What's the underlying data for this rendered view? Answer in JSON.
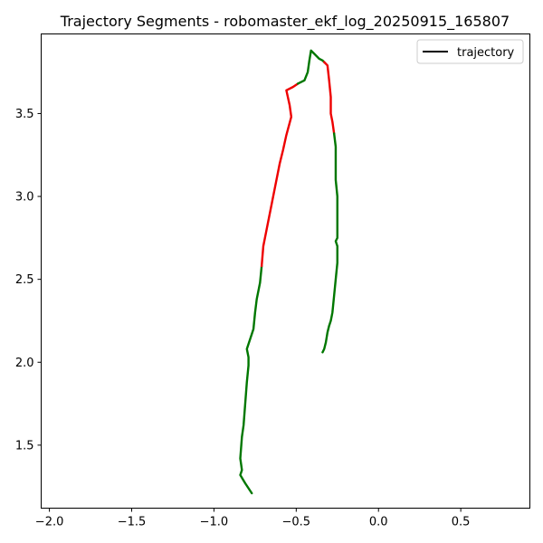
{
  "chart_data": {
    "type": "line",
    "title": "Trajectory Segments - robomaster_ekf_log_20250915_165807",
    "xlabel": "",
    "ylabel": "",
    "xlim": [
      -2.05,
      0.92
    ],
    "ylim": [
      1.12,
      3.98
    ],
    "xticks": [
      -2.0,
      -1.5,
      -1.0,
      -0.5,
      0.0,
      0.5
    ],
    "xtick_labels": [
      "−2.0",
      "−1.5",
      "−1.0",
      "−0.5",
      "0.0",
      "0.5"
    ],
    "yticks": [
      1.5,
      2.0,
      2.5,
      3.0,
      3.5
    ],
    "ytick_labels": [
      "1.5",
      "2.0",
      "2.5",
      "3.0",
      "3.5"
    ],
    "grid": false,
    "legend": {
      "position": "upper right",
      "entries": [
        {
          "label": "trajectory",
          "color": "#000000"
        }
      ]
    },
    "colors": {
      "red": "#ee0000",
      "green": "#007700"
    },
    "series": [
      {
        "color": "#007700",
        "points": [
          [
            -0.77,
            1.21
          ],
          [
            -0.81,
            1.27
          ],
          [
            -0.84,
            1.32
          ],
          [
            -0.83,
            1.35
          ],
          [
            -0.84,
            1.42
          ],
          [
            -0.83,
            1.55
          ],
          [
            -0.82,
            1.62
          ],
          [
            -0.81,
            1.75
          ],
          [
            -0.8,
            1.88
          ],
          [
            -0.79,
            1.98
          ],
          [
            -0.79,
            2.03
          ],
          [
            -0.8,
            2.08
          ],
          [
            -0.78,
            2.14
          ],
          [
            -0.76,
            2.2
          ],
          [
            -0.75,
            2.3
          ],
          [
            -0.74,
            2.38
          ],
          [
            -0.72,
            2.48
          ],
          [
            -0.71,
            2.58
          ]
        ]
      },
      {
        "color": "#ee0000",
        "points": [
          [
            -0.71,
            2.58
          ],
          [
            -0.7,
            2.7
          ],
          [
            -0.67,
            2.85
          ],
          [
            -0.63,
            3.05
          ],
          [
            -0.6,
            3.2
          ],
          [
            -0.58,
            3.28
          ],
          [
            -0.56,
            3.37
          ],
          [
            -0.53,
            3.48
          ],
          [
            -0.54,
            3.55
          ],
          [
            -0.56,
            3.64
          ],
          [
            -0.52,
            3.66
          ],
          [
            -0.49,
            3.68
          ]
        ]
      },
      {
        "color": "#007700",
        "points": [
          [
            -0.49,
            3.68
          ],
          [
            -0.45,
            3.7
          ],
          [
            -0.43,
            3.75
          ],
          [
            -0.42,
            3.82
          ],
          [
            -0.41,
            3.88
          ],
          [
            -0.39,
            3.86
          ],
          [
            -0.36,
            3.83
          ],
          [
            -0.34,
            3.82
          ],
          [
            -0.33,
            3.81
          ]
        ]
      },
      {
        "color": "#ee0000",
        "points": [
          [
            -0.33,
            3.81
          ],
          [
            -0.31,
            3.79
          ],
          [
            -0.3,
            3.7
          ],
          [
            -0.29,
            3.6
          ],
          [
            -0.29,
            3.5
          ],
          [
            -0.28,
            3.45
          ],
          [
            -0.27,
            3.38
          ]
        ]
      },
      {
        "color": "#007700",
        "points": [
          [
            -0.27,
            3.38
          ],
          [
            -0.26,
            3.3
          ],
          [
            -0.26,
            3.2
          ],
          [
            -0.26,
            3.1
          ],
          [
            -0.25,
            3.0
          ],
          [
            -0.25,
            2.9
          ],
          [
            -0.25,
            2.8
          ],
          [
            -0.25,
            2.75
          ],
          [
            -0.26,
            2.73
          ],
          [
            -0.25,
            2.7
          ],
          [
            -0.25,
            2.6
          ],
          [
            -0.26,
            2.5
          ],
          [
            -0.27,
            2.4
          ],
          [
            -0.28,
            2.3
          ],
          [
            -0.29,
            2.25
          ],
          [
            -0.3,
            2.22
          ],
          [
            -0.31,
            2.18
          ],
          [
            -0.32,
            2.12
          ],
          [
            -0.33,
            2.08
          ],
          [
            -0.34,
            2.06
          ]
        ]
      }
    ]
  }
}
